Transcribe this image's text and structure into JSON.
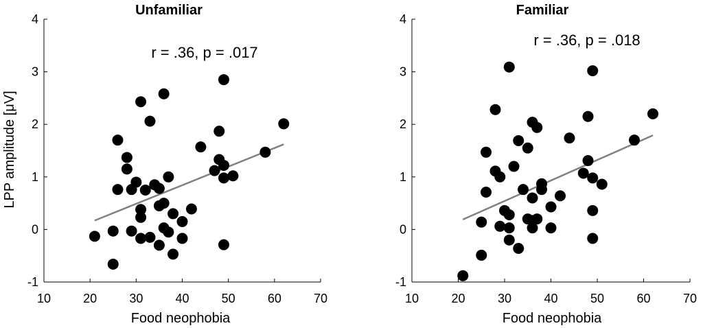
{
  "chart_data": [
    {
      "type": "scatter",
      "title": "Unfamiliar",
      "xlabel": "Food neophobia",
      "ylabel": "LPP amplitude [μV]",
      "xlim": [
        10,
        70
      ],
      "ylim": [
        -1,
        4
      ],
      "xticks": [
        "10",
        "20",
        "30",
        "40",
        "50",
        "60",
        "70"
      ],
      "yticks": [
        "-1",
        "0",
        "1",
        "2",
        "3",
        "4"
      ],
      "annotation": "r = .36, p = .017",
      "grid": false,
      "trend_line": {
        "x": [
          21,
          62
        ],
        "y": [
          0.17,
          1.62
        ],
        "color": "#808080"
      },
      "marker_color": "#000000",
      "points": [
        {
          "x": 21,
          "y": -0.13
        },
        {
          "x": 25,
          "y": -0.03
        },
        {
          "x": 25,
          "y": -0.66
        },
        {
          "x": 26,
          "y": 1.7
        },
        {
          "x": 26,
          "y": 0.76
        },
        {
          "x": 28,
          "y": 1.37
        },
        {
          "x": 28,
          "y": 1.15
        },
        {
          "x": 29,
          "y": 0.76
        },
        {
          "x": 29,
          "y": -0.03
        },
        {
          "x": 30,
          "y": 0.9
        },
        {
          "x": 31,
          "y": 2.43
        },
        {
          "x": 31,
          "y": 0.38
        },
        {
          "x": 31,
          "y": 0.23
        },
        {
          "x": 31,
          "y": -0.17
        },
        {
          "x": 32,
          "y": 0.75
        },
        {
          "x": 33,
          "y": 2.06
        },
        {
          "x": 33,
          "y": -0.15
        },
        {
          "x": 34,
          "y": 0.85
        },
        {
          "x": 35,
          "y": 0.78
        },
        {
          "x": 35,
          "y": 0.45
        },
        {
          "x": 35,
          "y": -0.3
        },
        {
          "x": 36,
          "y": 2.58
        },
        {
          "x": 36,
          "y": 0.5
        },
        {
          "x": 36,
          "y": 0.03
        },
        {
          "x": 37,
          "y": 1.0
        },
        {
          "x": 37,
          "y": -0.05
        },
        {
          "x": 38,
          "y": 0.3
        },
        {
          "x": 38,
          "y": -0.47
        },
        {
          "x": 40,
          "y": 0.15
        },
        {
          "x": 40,
          "y": -0.17
        },
        {
          "x": 42,
          "y": 0.39
        },
        {
          "x": 44,
          "y": 1.57
        },
        {
          "x": 47,
          "y": 1.12
        },
        {
          "x": 48,
          "y": 1.87
        },
        {
          "x": 48,
          "y": 1.33
        },
        {
          "x": 49,
          "y": 2.85
        },
        {
          "x": 49,
          "y": 1.22
        },
        {
          "x": 49,
          "y": 0.98
        },
        {
          "x": 49,
          "y": -0.29
        },
        {
          "x": 51,
          "y": 1.02
        },
        {
          "x": 58,
          "y": 1.47
        },
        {
          "x": 62,
          "y": 2.01
        }
      ]
    },
    {
      "type": "scatter",
      "title": "Familiar",
      "xlabel": "Food neophobia",
      "ylabel": "",
      "xlim": [
        10,
        70
      ],
      "ylim": [
        -1,
        4
      ],
      "xticks": [
        "10",
        "20",
        "30",
        "40",
        "50",
        "60",
        "70"
      ],
      "yticks": [
        "-1",
        "0",
        "1",
        "2",
        "3",
        "4"
      ],
      "annotation": "r = .36, p = .018",
      "grid": false,
      "trend_line": {
        "x": [
          21,
          62
        ],
        "y": [
          0.19,
          1.79
        ],
        "color": "#808080"
      },
      "marker_color": "#000000",
      "points": [
        {
          "x": 21,
          "y": -0.88
        },
        {
          "x": 25,
          "y": 0.14
        },
        {
          "x": 25,
          "y": -0.49
        },
        {
          "x": 26,
          "y": 1.47
        },
        {
          "x": 26,
          "y": 0.71
        },
        {
          "x": 28,
          "y": 2.28
        },
        {
          "x": 28,
          "y": 1.11
        },
        {
          "x": 29,
          "y": 1.0
        },
        {
          "x": 29,
          "y": 0.06
        },
        {
          "x": 30,
          "y": 0.36
        },
        {
          "x": 31,
          "y": 3.09
        },
        {
          "x": 31,
          "y": 0.28
        },
        {
          "x": 31,
          "y": 0.03
        },
        {
          "x": 31,
          "y": -0.2
        },
        {
          "x": 32,
          "y": 1.2
        },
        {
          "x": 33,
          "y": 1.69
        },
        {
          "x": 33,
          "y": -0.36
        },
        {
          "x": 34,
          "y": 0.76
        },
        {
          "x": 35,
          "y": 1.55
        },
        {
          "x": 35,
          "y": 0.2
        },
        {
          "x": 36,
          "y": 2.04
        },
        {
          "x": 36,
          "y": 0.6
        },
        {
          "x": 36,
          "y": 0.17
        },
        {
          "x": 36,
          "y": 0.03
        },
        {
          "x": 37,
          "y": 1.94
        },
        {
          "x": 37,
          "y": 0.2
        },
        {
          "x": 38,
          "y": 0.87
        },
        {
          "x": 38,
          "y": 0.76
        },
        {
          "x": 40,
          "y": 0.43
        },
        {
          "x": 40,
          "y": 0.03
        },
        {
          "x": 42,
          "y": 0.64
        },
        {
          "x": 44,
          "y": 1.74
        },
        {
          "x": 47,
          "y": 1.07
        },
        {
          "x": 48,
          "y": 2.15
        },
        {
          "x": 48,
          "y": 1.31
        },
        {
          "x": 49,
          "y": 3.02
        },
        {
          "x": 49,
          "y": 0.98
        },
        {
          "x": 49,
          "y": 0.36
        },
        {
          "x": 49,
          "y": -0.17
        },
        {
          "x": 51,
          "y": 0.86
        },
        {
          "x": 58,
          "y": 1.7
        },
        {
          "x": 62,
          "y": 2.2
        }
      ]
    }
  ]
}
